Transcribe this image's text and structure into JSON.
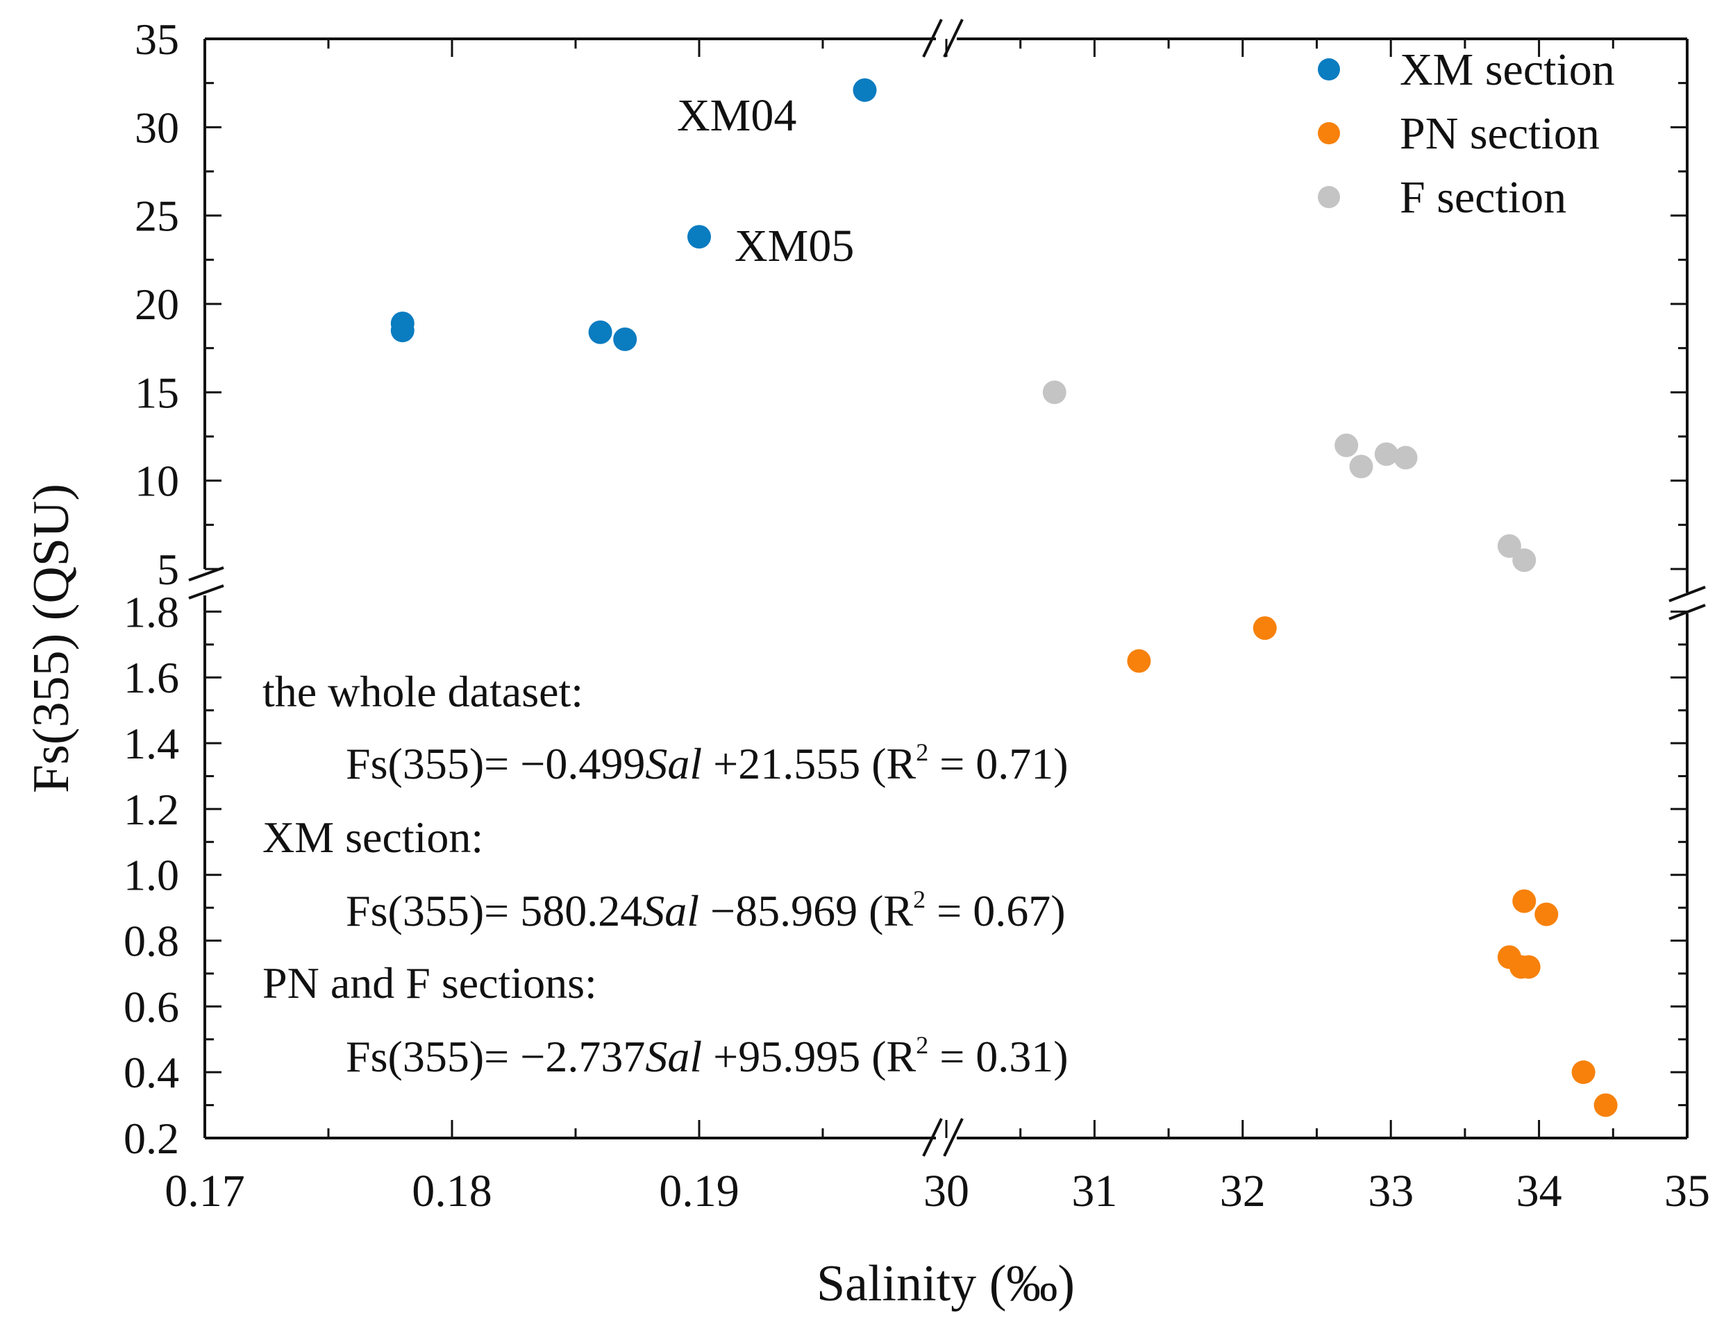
{
  "chart_data": {
    "type": "scatter",
    "xlabel": "Salinity (‰)",
    "ylabel": "Fs(355) (QSU)",
    "axes": {
      "x_left": {
        "range": [
          0.17,
          0.2
        ],
        "ticks": [
          "0.17",
          "0.18",
          "0.19"
        ],
        "tick_values": [
          0.17,
          0.18,
          0.19
        ]
      },
      "x_right": {
        "range": [
          30,
          35
        ],
        "ticks": [
          "30",
          "31",
          "32",
          "33",
          "34",
          "35"
        ],
        "tick_values": [
          30,
          31,
          32,
          33,
          34,
          35
        ]
      },
      "y_top": {
        "range": [
          5,
          35
        ],
        "ticks": [
          "5",
          "10",
          "15",
          "20",
          "25",
          "30",
          "35"
        ],
        "tick_values": [
          5,
          10,
          15,
          20,
          25,
          30,
          35
        ]
      },
      "y_bottom": {
        "range": [
          0.2,
          1.9
        ],
        "ticks": [
          "0.2",
          "0.4",
          "0.6",
          "0.8",
          "1.0",
          "1.2",
          "1.4",
          "1.6",
          "1.8"
        ],
        "tick_values": [
          0.2,
          0.4,
          0.6,
          0.8,
          1.0,
          1.2,
          1.4,
          1.6,
          1.8
        ]
      }
    },
    "legend_position": "top-right",
    "series": [
      {
        "name": "XM section",
        "color": "#0a7cc0",
        "points": [
          {
            "x": 0.178,
            "y": 18.9
          },
          {
            "x": 0.178,
            "y": 18.5
          },
          {
            "x": 0.186,
            "y": 18.4
          },
          {
            "x": 0.187,
            "y": 18.0
          },
          {
            "x": 0.19,
            "y": 23.8
          },
          {
            "x": 0.1967,
            "y": 32.1
          }
        ]
      },
      {
        "name": "PN section",
        "color": "#f7810b",
        "points": [
          {
            "x": 31.3,
            "y": 1.65
          },
          {
            "x": 32.15,
            "y": 1.75
          },
          {
            "x": 33.9,
            "y": 0.92
          },
          {
            "x": 34.05,
            "y": 0.88
          },
          {
            "x": 33.8,
            "y": 0.75
          },
          {
            "x": 33.88,
            "y": 0.72
          },
          {
            "x": 33.93,
            "y": 0.72
          },
          {
            "x": 34.3,
            "y": 0.4
          },
          {
            "x": 34.45,
            "y": 0.3
          }
        ]
      },
      {
        "name": "F section",
        "color": "#c4c4c4",
        "points": [
          {
            "x": 30.73,
            "y": 15.0
          },
          {
            "x": 32.7,
            "y": 12.0
          },
          {
            "x": 32.8,
            "y": 10.8
          },
          {
            "x": 32.97,
            "y": 11.5
          },
          {
            "x": 33.1,
            "y": 11.3
          },
          {
            "x": 33.8,
            "y": 6.3
          },
          {
            "x": 33.9,
            "y": 5.5
          }
        ]
      }
    ],
    "annotations": {
      "xm04": "XM04",
      "xm05": "XM05"
    },
    "equations": {
      "whole_title": "the whole dataset:",
      "whole_eq": {
        "lhs": "Fs(355)= ",
        "coef": "−0.499",
        "var": "Sal",
        "rest": " +21.555 (R",
        "sup": "2",
        "end": " = 0.71)"
      },
      "xm_title": "XM section:",
      "xm_eq": {
        "lhs": "Fs(355)= ",
        "coef": "580.24",
        "var": "Sal",
        "rest": " −85.969 (R",
        "sup": "2",
        "end": " = 0.67)"
      },
      "pnf_title": "PN and F sections:",
      "pnf_eq": {
        "lhs": "Fs(355)= ",
        "coef": "−2.737",
        "var": "Sal",
        "rest": " +95.995 (R",
        "sup": "2",
        "end": " = 0.31)"
      }
    }
  }
}
